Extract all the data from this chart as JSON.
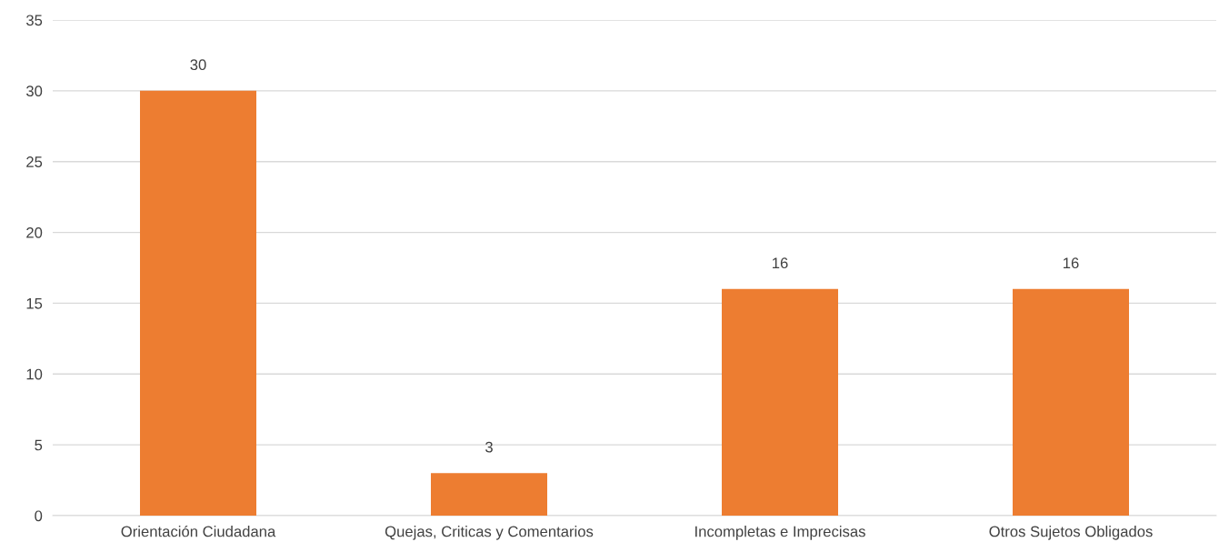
{
  "chart_data": {
    "type": "bar",
    "categories": [
      "Orientación Ciudadana",
      "Quejas, Criticas y Comentarios",
      "Incompletas e Imprecisas",
      "Otros Sujetos Obligados"
    ],
    "values": [
      30,
      3,
      16,
      16
    ],
    "color": "#ed7d31",
    "ylim": [
      0,
      35
    ],
    "yticks": [
      0,
      5,
      10,
      15,
      20,
      25,
      30,
      35
    ],
    "grid": "y",
    "data_labels": true,
    "legend": false
  }
}
